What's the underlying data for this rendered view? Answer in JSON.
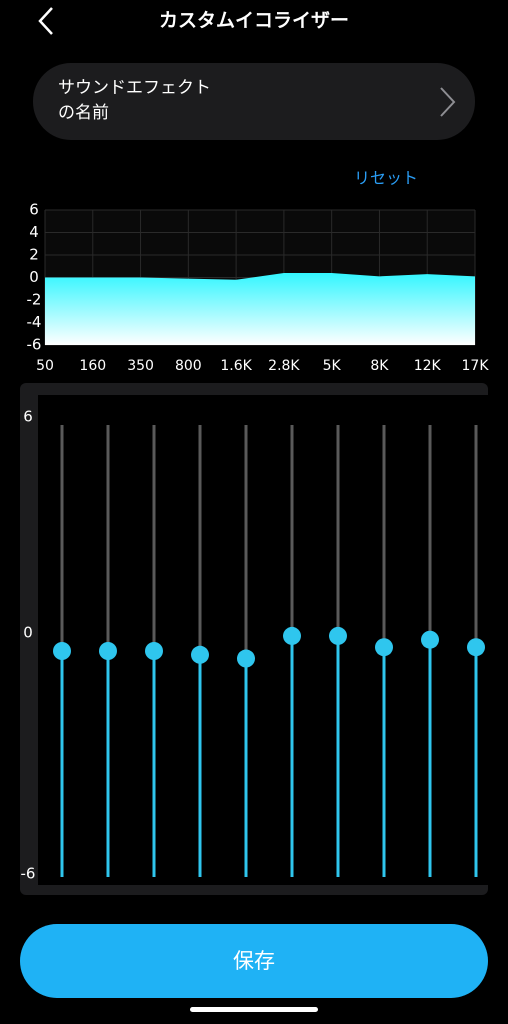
{
  "header": {
    "title": "カスタムイコライザー"
  },
  "sound_effect": {
    "name": "サウンドエフェクトの名前"
  },
  "reset": "リセット",
  "equalizer": {
    "bands": [
      "50",
      "160",
      "350",
      "800",
      "1.6K",
      "2.8K",
      "5K",
      "8K",
      "12K",
      "17K"
    ],
    "values": [
      0,
      0,
      0,
      -0.1,
      -0.2,
      0.4,
      0.4,
      0.1,
      0.3,
      0.1
    ],
    "ylim": [
      -6,
      6
    ],
    "yticks": [
      6,
      4,
      2,
      0,
      -2,
      -4,
      -6
    ],
    "slider_ticks": [
      6,
      0,
      -6
    ],
    "color": "#2fc6ee"
  },
  "save_button": "保存"
}
